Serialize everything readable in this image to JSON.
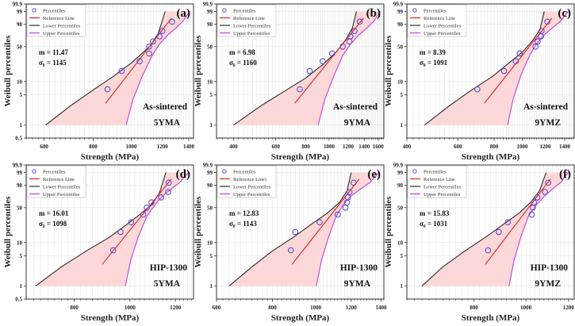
{
  "figure": {
    "legend": {
      "percentiles": "Percentiles",
      "reference": "Reference Line",
      "reference_e": "Reference Line)",
      "lower": "Lower Percentiles",
      "upper": "Upper Percentiles"
    },
    "colors": {
      "points": "#5a4fd0",
      "reference": "#e02020",
      "lower": "#2a2a2a",
      "upper": "#c040e0",
      "band": "#fcd4d4"
    },
    "xlabel": "Strength (MPa)",
    "ylabel": "Weibull percentiles"
  },
  "chart_data": [
    {
      "id": "a",
      "panel_label": "(a)",
      "type": "scatter",
      "title": "",
      "xlabel": "Strength (MPa)",
      "ylabel": "Weibull percentiles",
      "x_scale": "log",
      "y_scale": "weibull",
      "xlim": [
        540,
        1440
      ],
      "ylim": [
        0.5,
        99.9
      ],
      "xticks": [
        600,
        800,
        1000,
        1200,
        1400
      ],
      "yticks": [
        0.5,
        1,
        5,
        10,
        50,
        90,
        99,
        99.9
      ],
      "ytick_labels": [
        "0.5",
        "1",
        "5",
        "10",
        "50",
        "90",
        "99",
        "99.9"
      ],
      "annotation": {
        "m": "m = 11.47",
        "sigma": "σ₀ = 1145",
        "condition": "As-sintered",
        "material": "5YMA"
      },
      "legend_reference_label": "Reference Line",
      "points": {
        "x": [
          870,
          945,
          1050,
          1110,
          1110,
          1135,
          1180,
          1200,
          1270
        ],
        "y": [
          6.7,
          17,
          27,
          38,
          50,
          60,
          70,
          80,
          93
        ]
      },
      "reference_line": {
        "x": [
          860,
          1265
        ],
        "y": [
          3.2,
          96
        ]
      },
      "lower_percentiles": {
        "x": [
          605,
          700,
          800,
          900,
          1000,
          1060,
          1120,
          1170,
          1220
        ],
        "y": [
          1,
          2.8,
          6.5,
          13,
          25,
          37,
          52,
          75,
          99
        ]
      },
      "upper_percentiles": {
        "x": [
          970,
          1010,
          1070,
          1130,
          1180,
          1240,
          1300,
          1350,
          1410
        ],
        "y": [
          1,
          4,
          14,
          35,
          55,
          73,
          85,
          93,
          99
        ]
      }
    },
    {
      "id": "b",
      "panel_label": "(b)",
      "type": "scatter",
      "title": "",
      "xlabel": "Strength (MPa)",
      "ylabel": "Weibull percentiles",
      "x_scale": "log",
      "y_scale": "weibull",
      "xlim": [
        340,
        1690
      ],
      "ylim": [
        0.5,
        99.9
      ],
      "xticks": [
        400,
        600,
        800,
        1000,
        1200,
        1400,
        1600
      ],
      "yticks": [
        1,
        5,
        10,
        50,
        90,
        99,
        99.9
      ],
      "ytick_labels": [
        "1",
        "5",
        "10",
        "50",
        "90",
        "99",
        "99.9"
      ],
      "annotation": {
        "m": "m = 6.98",
        "sigma": "σ₀ = 1160",
        "condition": "As-sintered",
        "material": "9YMA"
      },
      "legend_reference_label": "Reference Line",
      "points": {
        "x": [
          755,
          830,
          940,
          1030,
          1140,
          1215,
          1225,
          1275,
          1340
        ],
        "y": [
          6.7,
          17,
          27,
          38,
          50,
          60,
          70,
          80,
          93
        ]
      },
      "reference_line": {
        "x": [
          720,
          1390
        ],
        "y": [
          3.2,
          96
        ]
      },
      "lower_percentiles": {
        "x": [
          400,
          520,
          650,
          800,
          950,
          1080,
          1180,
          1250,
          1300
        ],
        "y": [
          1,
          2.8,
          6,
          12,
          24,
          42,
          65,
          85,
          99
        ]
      },
      "upper_percentiles": {
        "x": [
          900,
          960,
          1050,
          1140,
          1230,
          1330,
          1440,
          1530,
          1630
        ],
        "y": [
          1,
          4,
          14,
          35,
          55,
          73,
          85,
          93,
          99
        ]
      }
    },
    {
      "id": "c",
      "panel_label": "(c)",
      "type": "scatter",
      "title": "",
      "xlabel": "Strength (MPa)",
      "ylabel": "Weibull percentiles",
      "x_scale": "log",
      "y_scale": "weibull",
      "xlim": [
        400,
        1510
      ],
      "ylim": [
        0.5,
        99.9
      ],
      "xticks": [
        400,
        600,
        800,
        1000,
        1200,
        1400
      ],
      "yticks": [
        1,
        5,
        10,
        50,
        90,
        99,
        99.9
      ],
      "ytick_labels": [
        "1",
        "5",
        "10",
        "50",
        "90",
        "99",
        "99.9"
      ],
      "annotation": {
        "m": "m = 8.39",
        "sigma": "σ₀ = 1091",
        "condition": "As-sintered",
        "material": "9YMZ"
      },
      "legend_reference_label": "Reference Line",
      "points": {
        "x": [
          700,
          865,
          950,
          980,
          1110,
          1130,
          1160,
          1165,
          1220
        ],
        "y": [
          6.7,
          17,
          27,
          38,
          50,
          60,
          70,
          80,
          93
        ]
      },
      "reference_line": {
        "x": [
          740,
          1265
        ],
        "y": [
          3.2,
          96
        ]
      },
      "lower_percentiles": {
        "x": [
          460,
          560,
          670,
          790,
          900,
          1000,
          1080,
          1150,
          1190
        ],
        "y": [
          1,
          2.8,
          6.5,
          13,
          25,
          40,
          60,
          82,
          99
        ]
      },
      "upper_percentiles": {
        "x": [
          890,
          930,
          990,
          1060,
          1120,
          1190,
          1270,
          1350,
          1440
        ],
        "y": [
          1,
          4,
          14,
          35,
          55,
          73,
          85,
          93,
          99
        ]
      }
    },
    {
      "id": "d",
      "panel_label": "(d)",
      "type": "scatter",
      "title": "",
      "xlabel": "Strength (MPa)",
      "ylabel": "Weibull percentiles",
      "x_scale": "log",
      "y_scale": "weibull",
      "xlim": [
        660,
        1290
      ],
      "ylim": [
        0.5,
        99.9
      ],
      "xticks": [
        800,
        1000,
        1200
      ],
      "yticks": [
        0.5,
        1,
        5,
        10,
        50,
        90,
        99,
        99.9
      ],
      "ytick_labels": [
        "0.5",
        "1",
        "5",
        "10",
        "50",
        "90",
        "99",
        "99.9"
      ],
      "annotation": {
        "m": "m = 16.01",
        "sigma": "σ₀ = 1098",
        "condition": "HIP-1300",
        "material": "5YMA"
      },
      "legend_reference_label": "Reference Line",
      "points": {
        "x": [
          935,
          963,
          1005,
          1055,
          1070,
          1090,
          1133,
          1165,
          1168
        ],
        "y": [
          6.7,
          17,
          27,
          38,
          50,
          60,
          70,
          80,
          93
        ]
      },
      "reference_line": {
        "x": [
          895,
          1180
        ],
        "y": [
          3.2,
          96
        ]
      },
      "lower_percentiles": {
        "x": [
          685,
          760,
          840,
          920,
          990,
          1040,
          1090,
          1125,
          1155
        ],
        "y": [
          1,
          2.8,
          6.5,
          13,
          25,
          38,
          55,
          78,
          99
        ]
      },
      "upper_percentiles": {
        "x": [
          982,
          1003,
          1035,
          1070,
          1105,
          1140,
          1180,
          1220,
          1265
        ],
        "y": [
          1,
          4,
          14,
          35,
          55,
          73,
          85,
          93,
          99
        ]
      }
    },
    {
      "id": "e",
      "panel_label": "(e)",
      "type": "scatter",
      "title": "",
      "xlabel": "Strength (MPa)",
      "ylabel": "Weibull percentiles",
      "x_scale": "log",
      "y_scale": "weibull",
      "xlim": [
        600,
        1420
      ],
      "ylim": [
        0.5,
        99.9
      ],
      "xticks": [
        600,
        800,
        1000,
        1200,
        1400
      ],
      "yticks": [
        1,
        5,
        10,
        50,
        90,
        99,
        99.9
      ],
      "ytick_labels": [
        "1",
        "5",
        "10",
        "50",
        "90",
        "99",
        "99.9"
      ],
      "annotation": {
        "m": "m = 12.83",
        "sigma": "σ₀ = 1143",
        "condition": "HIP-1300",
        "material": "9YMA"
      },
      "legend_reference_label": "Reference Line)",
      "points": {
        "x": [
          880,
          900,
          1020,
          1120,
          1165,
          1175,
          1180,
          1190,
          1215
        ],
        "y": [
          6.7,
          17,
          27,
          38,
          50,
          60,
          70,
          80,
          93
        ]
      },
      "reference_line": {
        "x": [
          885,
          1250
        ],
        "y": [
          3.2,
          96
        ]
      },
      "lower_percentiles": {
        "x": [
          640,
          720,
          800,
          890,
          980,
          1060,
          1130,
          1175,
          1200
        ],
        "y": [
          1,
          2.8,
          6.5,
          13,
          25,
          40,
          60,
          82,
          99
        ]
      },
      "upper_percentiles": {
        "x": [
          1003,
          1030,
          1070,
          1110,
          1150,
          1200,
          1260,
          1320,
          1385
        ],
        "y": [
          1,
          4,
          14,
          35,
          55,
          73,
          85,
          93,
          99
        ]
      }
    },
    {
      "id": "f",
      "panel_label": "(f)",
      "type": "scatter",
      "title": "",
      "xlabel": "Strength (MPa)",
      "ylabel": "Weibull percentiles",
      "x_scale": "log",
      "y_scale": "weibull",
      "xlim": [
        600,
        1230
      ],
      "ylim": [
        0.5,
        99.9
      ],
      "xticks": [
        800,
        1000,
        1200
      ],
      "yticks": [
        1,
        5,
        10,
        50,
        90,
        99,
        99.9
      ],
      "ytick_labels": [
        "1",
        "5",
        "10",
        "50",
        "90",
        "99",
        "99.9"
      ],
      "annotation": {
        "m": "m = 15.83",
        "sigma": "σ₀ = 1031",
        "condition": "HIP-1300",
        "material": "9YMZ"
      },
      "legend_reference_label": "Reference Line",
      "points": {
        "x": [
          850,
          890,
          925,
          1025,
          1030,
          1035,
          1050,
          1085,
          1100
        ],
        "y": [
          6.7,
          17,
          27,
          38,
          50,
          60,
          70,
          80,
          93
        ]
      },
      "reference_line": {
        "x": [
          840,
          1110
        ],
        "y": [
          3.2,
          96
        ]
      },
      "lower_percentiles": {
        "x": [
          640,
          700,
          770,
          840,
          910,
          970,
          1020,
          1060,
          1090
        ],
        "y": [
          1,
          2.8,
          6.5,
          13,
          25,
          40,
          60,
          82,
          99
        ]
      },
      "upper_percentiles": {
        "x": [
          930,
          950,
          980,
          1010,
          1045,
          1085,
          1120,
          1160,
          1200
        ],
        "y": [
          1,
          4,
          14,
          35,
          55,
          73,
          85,
          93,
          99
        ]
      }
    }
  ]
}
